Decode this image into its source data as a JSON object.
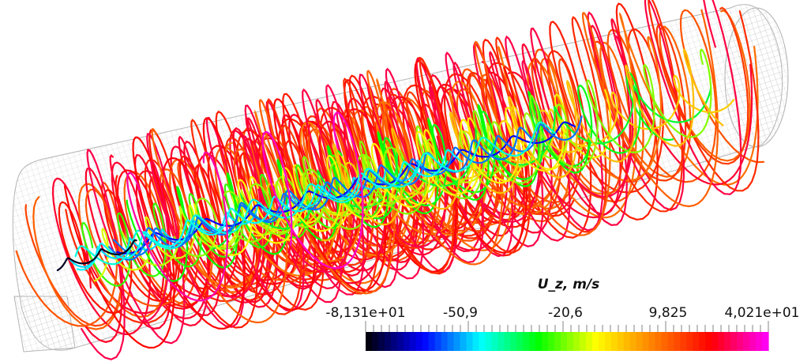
{
  "colorbar": {
    "title": "U_z, m/s",
    "labels": [
      "-8,131e+01",
      "-50,9",
      "-20,6",
      "9,825",
      "4,021e+01"
    ],
    "range": [
      -81.31,
      40.21
    ],
    "colormap": [
      "#000000",
      "#0000ff",
      "#00ffff",
      "#00ff00",
      "#ffff00",
      "#ff7f00",
      "#ff0000",
      "#ff00ff"
    ]
  }
}
